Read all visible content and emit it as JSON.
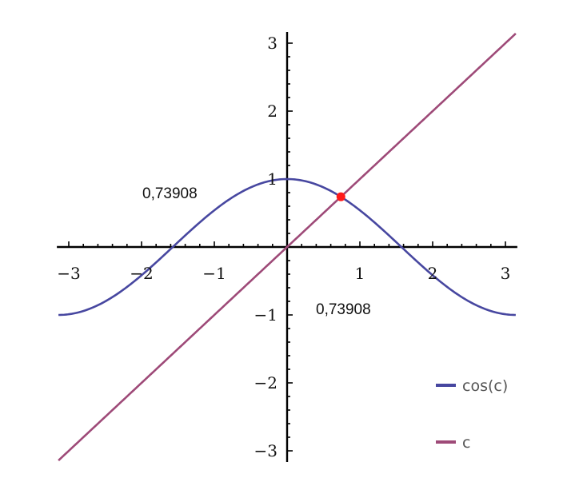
{
  "chart_data": {
    "type": "line",
    "xlim": [
      -3.1416,
      3.1416
    ],
    "ylim": [
      -3.1416,
      3.1416
    ],
    "x_ticks": [
      -3,
      -2,
      -1,
      1,
      2,
      3
    ],
    "y_ticks": [
      -3,
      -2,
      -1,
      1,
      2,
      3
    ],
    "x_tick_labels": [
      "−3",
      "−2",
      "−1",
      "1",
      "2",
      "3"
    ],
    "y_tick_labels": [
      "−3",
      "−2",
      "−1",
      "1",
      "2",
      "3"
    ],
    "grid": false,
    "legend_position": "bottom-right",
    "series": [
      {
        "name": "cos(c)",
        "function": "cos(c)",
        "color": "#4747a0"
      },
      {
        "name": "c",
        "function": "c",
        "color": "#9e4a78"
      }
    ],
    "intersection_point": {
      "x": 0.73908,
      "y": 0.73908,
      "color": "#ff1a1a"
    },
    "annotations": [
      {
        "text": "0,73908",
        "refers_to": "y"
      },
      {
        "text": "0,73908",
        "refers_to": "x"
      }
    ]
  }
}
